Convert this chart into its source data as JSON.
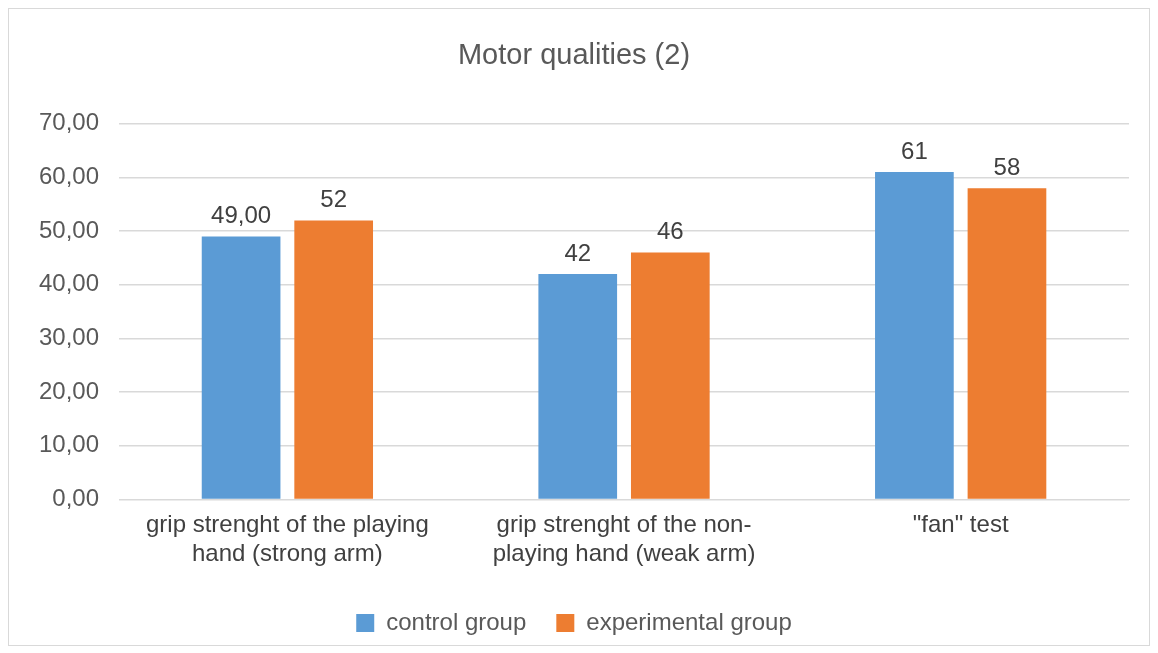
{
  "chart_data": {
    "type": "bar",
    "title": "Motor qualities (2)",
    "categories": [
      "grip strenght of the playing hand (strong arm)",
      "grip strenght of the non-playing hand (weak arm)",
      "\"fan\" test"
    ],
    "series": [
      {
        "name": "control group",
        "color": "#5b9bd5",
        "values": [
          49,
          42,
          61
        ],
        "value_labels": [
          "49,00",
          "42",
          "61"
        ]
      },
      {
        "name": "experimental group",
        "color": "#ed7d31",
        "values": [
          52,
          46,
          58
        ],
        "value_labels": [
          "52",
          "46",
          "58"
        ]
      }
    ],
    "ylim": [
      0,
      70
    ],
    "yticks": [
      {
        "value": 0,
        "label": "0,00"
      },
      {
        "value": 10,
        "label": "10,00"
      },
      {
        "value": 20,
        "label": "20,00"
      },
      {
        "value": 30,
        "label": "30,00"
      },
      {
        "value": 40,
        "label": "40,00"
      },
      {
        "value": 50,
        "label": "50,00"
      },
      {
        "value": 60,
        "label": "60,00"
      },
      {
        "value": 70,
        "label": "70,00"
      }
    ],
    "grid": "y",
    "legend": "bottom"
  }
}
